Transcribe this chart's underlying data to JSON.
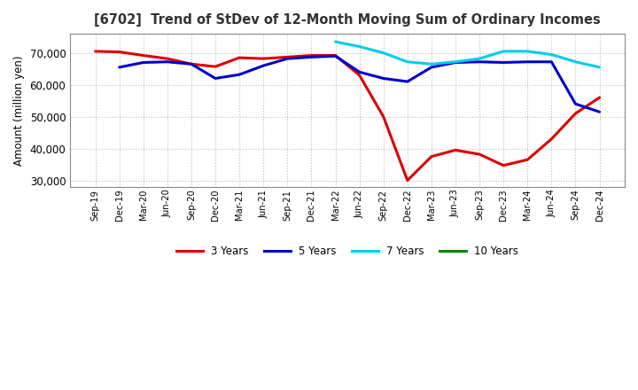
{
  "title": "[6702]  Trend of StDev of 12-Month Moving Sum of Ordinary Incomes",
  "ylabel": "Amount (million yen)",
  "ylim": [
    28000,
    76000
  ],
  "yticks": [
    30000,
    40000,
    50000,
    60000,
    70000
  ],
  "background_color": "#ffffff",
  "plot_bg_color": "#ffffff",
  "grid_color": "#bbbbbb",
  "labels": [
    "Sep-19",
    "Dec-19",
    "Mar-20",
    "Jun-20",
    "Sep-20",
    "Dec-20",
    "Mar-21",
    "Jun-21",
    "Sep-21",
    "Dec-21",
    "Mar-22",
    "Jun-22",
    "Sep-22",
    "Dec-22",
    "Mar-23",
    "Jun-23",
    "Sep-23",
    "Dec-23",
    "Mar-24",
    "Jun-24",
    "Sep-24",
    "Dec-24"
  ],
  "series": {
    "3 Years": {
      "color": "#dd0000",
      "values": [
        70500,
        70300,
        69200,
        68200,
        66500,
        65700,
        68500,
        68200,
        68700,
        69200,
        69200,
        63000,
        50000,
        30000,
        37500,
        39500,
        38200,
        34700,
        36500,
        43000,
        51000,
        56000
      ]
    },
    "5 Years": {
      "color": "#0000cc",
      "values": [
        null,
        65500,
        67000,
        67200,
        66500,
        62000,
        63200,
        66000,
        68200,
        68700,
        69000,
        64000,
        62000,
        61000,
        65500,
        67000,
        67200,
        67000,
        67200,
        67200,
        54000,
        51500
      ]
    },
    "7 Years": {
      "color": "#00ccee",
      "values": [
        null,
        null,
        null,
        null,
        null,
        null,
        null,
        null,
        null,
        null,
        73500,
        72000,
        70000,
        67200,
        66500,
        67200,
        68200,
        70500,
        70500,
        69500,
        67200,
        65500
      ]
    },
    "10 Years": {
      "color": "#008800",
      "values": [
        null,
        null,
        null,
        null,
        null,
        null,
        null,
        null,
        null,
        null,
        null,
        null,
        null,
        null,
        null,
        null,
        null,
        null,
        null,
        null,
        null,
        null
      ]
    }
  },
  "legend_order": [
    "3 Years",
    "5 Years",
    "7 Years",
    "10 Years"
  ],
  "legend_colors": [
    "#dd0000",
    "#0000cc",
    "#00ccee",
    "#008800"
  ]
}
